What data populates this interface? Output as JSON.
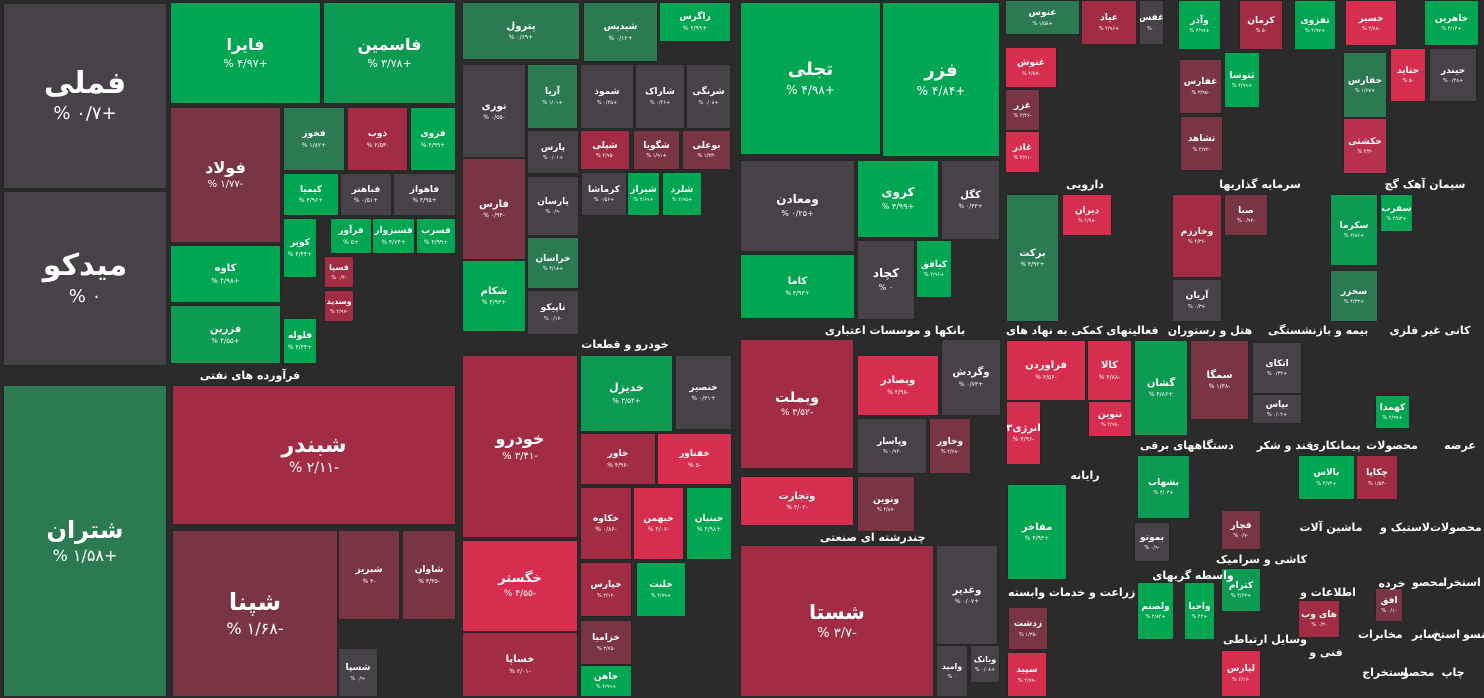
{
  "colors": {
    "strong_green": "#00a651",
    "green": "#0d9a53",
    "dark_green": "#2b7a52",
    "neutral": "#474248",
    "dark_red": "#7a3544",
    "red": "#a32c45",
    "bright_red": "#d72d4e",
    "pink": "#b8314e"
  },
  "sectors": [
    {
      "label": "فرآورده های نفتی"
    },
    {
      "label": "خودرو و قطعات"
    },
    {
      "label": "بانکها و موسسات اعتباری"
    },
    {
      "label": "چندرشته ای صنعتی"
    },
    {
      "label": "دارویی"
    },
    {
      "label": "سرمایه گذاریها"
    },
    {
      "label": "سیمان آهک گچ"
    },
    {
      "label": "فعالیتهای کمکی به نهاد های"
    },
    {
      "label": "هتل و رستوران"
    },
    {
      "label": "بیمه و بازنشستگی"
    },
    {
      "label": "کانی غیر فلزی"
    },
    {
      "label": "رایانه"
    },
    {
      "label": "دستگاههای برقی"
    },
    {
      "label": "قند و شکر"
    },
    {
      "label": "پیمانکاری"
    },
    {
      "label": "محصولات"
    },
    {
      "label": "عرضه"
    },
    {
      "label": "زراعت و خدمات وابسته"
    },
    {
      "label": "واسطه گریهای"
    },
    {
      "label": "کاشی و سرامیک"
    },
    {
      "label": "لاستیک و"
    },
    {
      "label": "ماشین آلات"
    },
    {
      "label": "محصولات"
    },
    {
      "label": "خرده"
    },
    {
      "label": "استخرا"
    },
    {
      "label": "محصو"
    },
    {
      "label": "اطلاعات و"
    },
    {
      "label": "استخ"
    },
    {
      "label": "منسو"
    },
    {
      "label": "سایر"
    },
    {
      "label": "مخابرات"
    },
    {
      "label": "وسایل ارتباطی"
    },
    {
      "label": "فنی و"
    },
    {
      "label": "استخراج"
    },
    {
      "label": "محصو"
    },
    {
      "label": "چاپ"
    }
  ],
  "tiles": [
    {
      "name": "فملی",
      "pct": "% ۰/۷+",
      "color": "neutral"
    },
    {
      "name": "میدکو",
      "pct": "% ۰",
      "color": "neutral"
    },
    {
      "name": "فایرا",
      "pct": "% ۴/۹۷+",
      "color": "strong_green"
    },
    {
      "name": "فاسمین",
      "pct": "% ۳/۷۸+",
      "color": "green"
    },
    {
      "name": "فولاد",
      "pct": "% ۱/۷۷-",
      "color": "dark_red"
    },
    {
      "name": "فخوز",
      "pct": "% ۱/۸۲+",
      "color": "dark_green"
    },
    {
      "name": "ذوب",
      "pct": "% ۲/۵۳-",
      "color": "red"
    },
    {
      "name": "فروی",
      "pct": "% ۴/۹۹+",
      "color": "strong_green"
    },
    {
      "name": "کیمیا",
      "pct": "% ۴/۹۶+",
      "color": "strong_green"
    },
    {
      "name": "فباهنر",
      "pct": "% ۰/۵۱+",
      "color": "neutral"
    },
    {
      "name": "فاهواز",
      "pct": "% ۴/۹۵+",
      "color": "neutral"
    },
    {
      "name": "کاوه",
      "pct": "% ۴/۹۸+",
      "color": "strong_green"
    },
    {
      "name": "کویر",
      "pct": "% ۴/۴۴+",
      "color": "strong_green"
    },
    {
      "name": "فرآور",
      "pct": "% ۵+",
      "color": "strong_green"
    },
    {
      "name": "فسبزوار",
      "pct": "% ۴/۷۴+",
      "color": "strong_green"
    },
    {
      "name": "فسرب",
      "pct": "% ۴/۹۹+",
      "color": "strong_green"
    },
    {
      "name": "فسپا",
      "pct": "% ۰/۴-",
      "color": "red"
    },
    {
      "name": "فزرین",
      "pct": "% ۴/۵۵+",
      "color": "green"
    },
    {
      "name": "وسدید",
      "pct": "% ۲/۹۷-",
      "color": "red"
    },
    {
      "name": "فلوله",
      "pct": "% ۴/۴۴+",
      "color": "strong_green"
    },
    {
      "name": "پترول",
      "pct": "% ۰/۶۹+",
      "color": "dark_green"
    },
    {
      "name": "شپدیس",
      "pct": "% ۰/۱۲+",
      "color": "dark_green"
    },
    {
      "name": "زاگرس",
      "pct": "% ۴/۹۹+",
      "color": "strong_green"
    },
    {
      "name": "نوری",
      "pct": "% ۰/۵۵-",
      "color": "neutral"
    },
    {
      "name": "آریا",
      "pct": "% ۱/۰۱+",
      "color": "dark_green"
    },
    {
      "name": "شموذ",
      "pct": "% ۰/۴۵+",
      "color": "neutral"
    },
    {
      "name": "شاراک",
      "pct": "% ۰/۴۶+",
      "color": "neutral"
    },
    {
      "name": "شرنگی",
      "pct": "% ۰/۰۸+",
      "color": "neutral"
    },
    {
      "name": "پارس",
      "pct": "% ۰/۰۱+",
      "color": "neutral"
    },
    {
      "name": "شپلی",
      "pct": "% ۴/۹۵-",
      "color": "red"
    },
    {
      "name": "شگویا",
      "pct": "% ۱/۹۱+",
      "color": "dark_red"
    },
    {
      "name": "بوعلی",
      "pct": "% ۱/۳۳-",
      "color": "dark_red"
    },
    {
      "name": "فارس",
      "pct": "% ۰/۹۴-",
      "color": "dark_red"
    },
    {
      "name": "کرماشا",
      "pct": "% ۰/۵۶+",
      "color": "neutral"
    },
    {
      "name": "شیراز",
      "pct": "% ۴/۶۹+",
      "color": "strong_green"
    },
    {
      "name": "شلرد",
      "pct": "% ۴/۹۵+",
      "color": "strong_green"
    },
    {
      "name": "پارسان",
      "pct": "% ۰/۹-",
      "color": "neutral"
    },
    {
      "name": "خراسان",
      "pct": "% ۴/۱۸+",
      "color": "dark_green"
    },
    {
      "name": "شکام",
      "pct": "% ۴/۹۳+",
      "color": "strong_green"
    },
    {
      "name": "تاپیکو",
      "pct": "% ۰/۱۷-",
      "color": "neutral"
    },
    {
      "name": "تجلی",
      "pct": "% ۴/۹۸+",
      "color": "strong_green"
    },
    {
      "name": "فزر",
      "pct": "% ۴/۸۴+",
      "color": "strong_green"
    },
    {
      "name": "ومعادن",
      "pct": "% ۰/۲۵+",
      "color": "neutral"
    },
    {
      "name": "کروی",
      "pct": "% ۴/۹۹+",
      "color": "strong_green"
    },
    {
      "name": "کگل",
      "pct": "% ۰/۳۳+",
      "color": "neutral"
    },
    {
      "name": "کاما",
      "pct": "% ۴/۹۳+",
      "color": "strong_green"
    },
    {
      "name": "کچاد",
      "pct": "% ۰",
      "color": "neutral"
    },
    {
      "name": "کیافق",
      "pct": "% ۴/۹۶+",
      "color": "strong_green"
    },
    {
      "name": "عنوس",
      "pct": "% ۱/۵۸+",
      "color": "dark_green"
    },
    {
      "name": "عیاد",
      "pct": "% ۴/۹۶+",
      "color": "red"
    },
    {
      "name": "غفس",
      "pct": "% ۰",
      "color": "neutral"
    },
    {
      "name": "غنوش",
      "pct": "% ۴/۸۷-",
      "color": "bright_red"
    },
    {
      "name": "غزر",
      "pct": "% ۴/۴۶-",
      "color": "dark_red"
    },
    {
      "name": "غاذر",
      "pct": "% ۴/۹۱-",
      "color": "bright_red"
    },
    {
      "name": "وآذر",
      "pct": "% ۴/۹۹+",
      "color": "strong_green"
    },
    {
      "name": "کرمان",
      "pct": "% ۵-",
      "color": "red"
    },
    {
      "name": "تفزوی",
      "pct": "% ۴/۹۷+",
      "color": "strong_green"
    },
    {
      "name": "غفارس",
      "pct": "% ۳/۹۵-",
      "color": "dark_red"
    },
    {
      "name": "ثتوسا",
      "pct": "% ۴/۹۹+",
      "color": "strong_green"
    },
    {
      "name": "تشاهد",
      "pct": "% ۴/۷۲-",
      "color": "dark_red"
    },
    {
      "name": "خسیر",
      "pct": "% ۴/۷۸-",
      "color": "bright_red"
    },
    {
      "name": "خاهرین",
      "pct": "% ۴/۱۴+",
      "color": "strong_green"
    },
    {
      "name": "حفارس",
      "pct": "% ۱/۶۷+",
      "color": "dark_green"
    },
    {
      "name": "حتاید",
      "pct": "% ۵-",
      "color": "bright_red"
    },
    {
      "name": "حیندر",
      "pct": "% ۰/۴۸+",
      "color": "neutral"
    },
    {
      "name": "حکشتی",
      "pct": "% ۴/۳-",
      "color": "pink"
    },
    {
      "name": "برکت",
      "pct": "% ۴/۹۲+",
      "color": "dark_green"
    },
    {
      "name": "دیران",
      "pct": "% ۴/۹۸-",
      "color": "bright_red"
    },
    {
      "name": "وخارزم",
      "pct": "% ۴/۳۶-",
      "color": "red"
    },
    {
      "name": "صبا",
      "pct": "% ۰/۹۲-",
      "color": "dark_red"
    },
    {
      "name": "آریان",
      "pct": "% ۰/۳۹-",
      "color": "neutral"
    },
    {
      "name": "سفرب",
      "pct": "% ۴/۵۳+",
      "color": "strong_green"
    },
    {
      "name": "سکرما",
      "pct": "% ۳/۸۶+",
      "color": "green"
    },
    {
      "name": "سخزر",
      "pct": "% ۴/۴۳+",
      "color": "dark_green"
    },
    {
      "name": "وبملت",
      "pct": "% ۳/۵۲-",
      "color": "red"
    },
    {
      "name": "وبصادر",
      "pct": "% ۴/۹۸-",
      "color": "bright_red"
    },
    {
      "name": "وگردش",
      "pct": "% ۰/۷۴+",
      "color": "neutral"
    },
    {
      "name": "وپاسار",
      "pct": "% ۰/۹۴-",
      "color": "neutral"
    },
    {
      "name": "وخاور",
      "pct": "% ۲/۶۸-",
      "color": "dark_red"
    },
    {
      "name": "وتجارت",
      "pct": "% ۴/۰۲-",
      "color": "bright_red"
    },
    {
      "name": "ونوین",
      "pct": "% ۴/۸۷-",
      "color": "dark_red"
    },
    {
      "name": "شستا",
      "pct": "% ۳/۷-",
      "color": "red"
    },
    {
      "name": "وغدیر",
      "pct": "% ۰/۰۷+",
      "color": "neutral"
    },
    {
      "name": "وبانک",
      "pct": "% ۰/۰۸+",
      "color": "neutral"
    },
    {
      "name": "وامید",
      "pct": "% ۰",
      "color": "neutral"
    },
    {
      "name": "فراوردن",
      "pct": "% ۴/۵۶-",
      "color": "bright_red"
    },
    {
      "name": "کالا",
      "pct": "% ۴/۸۸-",
      "color": "bright_red"
    },
    {
      "name": "انرژی۳",
      "pct": "% ۴/۹۶-",
      "color": "bright_red"
    },
    {
      "name": "تنوین",
      "pct": "% ۴/۹۸-",
      "color": "bright_red"
    },
    {
      "name": "مفاخر",
      "pct": "% ۴/۹۳+",
      "color": "strong_green"
    },
    {
      "name": "زدشت",
      "pct": "% ۱/۳۵-",
      "color": "dark_red"
    },
    {
      "name": "سپید",
      "pct": "% ۴/۹۹-",
      "color": "bright_red"
    },
    {
      "name": "گشان",
      "pct": "% ۴/۸۶+",
      "color": "green"
    },
    {
      "name": "سمگا",
      "pct": "% ۱/۳۸-",
      "color": "dark_red"
    },
    {
      "name": "اتکای",
      "pct": "% ۰/۳۴+",
      "color": "neutral"
    },
    {
      "name": "بپاس",
      "pct": "% ۰/۰۴+",
      "color": "neutral"
    },
    {
      "name": "کهمدا",
      "pct": "% ۴/۹۹+",
      "color": "strong_green"
    },
    {
      "name": "بشهاب",
      "pct": "% ۴/۰۳+",
      "color": "green"
    },
    {
      "name": "قچار",
      "pct": "% ۰/۷-",
      "color": "dark_red"
    },
    {
      "name": "بموتو",
      "pct": "% ۰/۹-",
      "color": "neutral"
    },
    {
      "name": "کترام",
      "pct": "% ۴/۶۳+",
      "color": "green"
    },
    {
      "name": "بالاس",
      "pct": "% ۴/۷۴+",
      "color": "strong_green"
    },
    {
      "name": "چکاپا",
      "pct": "% ۱/۵۳-",
      "color": "red"
    },
    {
      "name": "ولصنم",
      "pct": "% ۴/۸۴+",
      "color": "strong_green"
    },
    {
      "name": "واحیا",
      "pct": "% ۴۳+",
      "color": "strong_green"
    },
    {
      "name": "لپارس",
      "pct": "% ۴/۱۶-",
      "color": "bright_red"
    },
    {
      "name": "افق",
      "pct": "% ۰/۱-",
      "color": "dark_red"
    },
    {
      "name": "های وب",
      "pct": "% ۰/۳-",
      "color": "red"
    },
    {
      "name": "خودرو",
      "pct": "% ۳/۴۱-",
      "color": "red"
    },
    {
      "name": "خدیزل",
      "pct": "% ۳/۵۴+",
      "color": "green"
    },
    {
      "name": "خنصیر",
      "pct": "% ۰/۳۱+",
      "color": "neutral"
    },
    {
      "name": "خاور",
      "pct": "% ۴/۹۶-",
      "color": "red"
    },
    {
      "name": "خفناور",
      "pct": "% ۵-",
      "color": "bright_red"
    },
    {
      "name": "خکاوه",
      "pct": "% ۰/۸۶-",
      "color": "red"
    },
    {
      "name": "خبهمن",
      "pct": "% ۴/۰۷-",
      "color": "bright_red"
    },
    {
      "name": "خبنیان",
      "pct": "% ۴/۹۸+",
      "color": "strong_green"
    },
    {
      "name": "خگستر",
      "pct": "% ۴/۵۵-",
      "color": "bright_red"
    },
    {
      "name": "خپارس",
      "pct": "% ۳/۱۲-",
      "color": "red"
    },
    {
      "name": "خلنت",
      "pct": "% ۴/۹۹+",
      "color": "strong_green"
    },
    {
      "name": "خزامیا",
      "pct": "% ۳/۷۵-",
      "color": "dark_red"
    },
    {
      "name": "خساپا",
      "pct": "% ۲/۰۱-",
      "color": "red"
    },
    {
      "name": "خاهن",
      "pct": "% ۴/۹۹+",
      "color": "strong_green"
    },
    {
      "name": "شتران",
      "pct": "% ۱/۵۸+",
      "color": "dark_green"
    },
    {
      "name": "شبندر",
      "pct": "% ۲/۱۱-",
      "color": "red"
    },
    {
      "name": "شپنا",
      "pct": "% ۱/۶۸-",
      "color": "dark_red"
    },
    {
      "name": "شبریز",
      "pct": "% ۳-",
      "color": "dark_red"
    },
    {
      "name": "شاوان",
      "pct": "% ۳/۳۵-",
      "color": "dark_red"
    },
    {
      "name": "شسپا",
      "pct": "% ۰/۹-",
      "color": "neutral"
    }
  ]
}
